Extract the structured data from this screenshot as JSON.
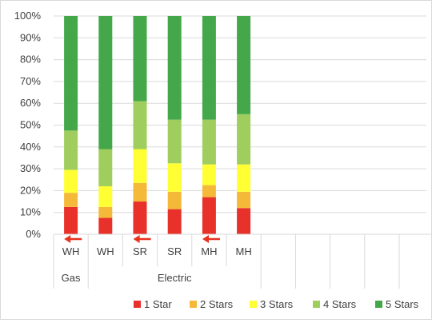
{
  "chart_data": {
    "type": "bar",
    "stacked": true,
    "normalized_percent": true,
    "categories": [
      "WH",
      "WH",
      "SR",
      "SR",
      "MH",
      "MH"
    ],
    "groups": [
      {
        "label": "Gas",
        "span": [
          0,
          0
        ]
      },
      {
        "label": "Electric",
        "span": [
          1,
          5
        ]
      }
    ],
    "empty_slots": 8,
    "ylim": [
      0,
      100
    ],
    "ytick_labels": [
      "0%",
      "10%",
      "20%",
      "30%",
      "40%",
      "50%",
      "60%",
      "70%",
      "80%",
      "90%",
      "100%"
    ],
    "grid": "horizontal",
    "legend_position": "bottom",
    "series": [
      {
        "name": "1 Star",
        "color": "#e8312a",
        "values": [
          12.5,
          7.5,
          15,
          11.5,
          17,
          12
        ]
      },
      {
        "name": "2 Stars",
        "color": "#f5b93a",
        "values": [
          6.5,
          5,
          8.5,
          8,
          5.5,
          7.5
        ]
      },
      {
        "name": "3 Stars",
        "color": "#ffff33",
        "values": [
          10.5,
          9.5,
          15.5,
          13,
          9.5,
          12.5
        ]
      },
      {
        "name": "4 Stars",
        "color": "#9fcd5e",
        "values": [
          18,
          17,
          22,
          20,
          20.5,
          23
        ]
      },
      {
        "name": "5 Stars",
        "color": "#44a84a",
        "values": [
          52.5,
          61,
          39,
          47.5,
          47.5,
          45
        ]
      }
    ],
    "annotations": {
      "arrow_color": "#e8311f",
      "arrows": [
        {
          "from_category": 1,
          "to_category": 0,
          "direction": "left"
        },
        {
          "from_category": 3,
          "to_category": 2,
          "direction": "left"
        },
        {
          "from_category": 5,
          "to_category": 4,
          "direction": "left"
        }
      ]
    }
  }
}
